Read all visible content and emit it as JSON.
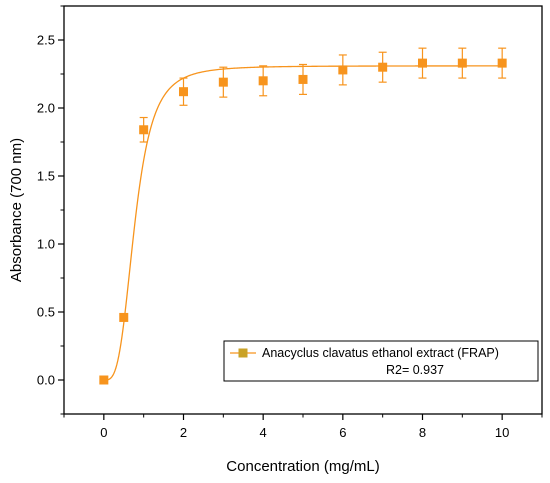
{
  "chart_data": {
    "type": "scatter",
    "xlabel": "Concentration (mg/mL)",
    "ylabel": "Absorbance (700 nm)",
    "xlim": [
      -1.0,
      11.0
    ],
    "ylim": [
      -0.25,
      2.75
    ],
    "xticks": [
      0,
      2,
      4,
      6,
      8,
      10
    ],
    "yticks": [
      0.0,
      0.5,
      1.0,
      1.5,
      2.0,
      2.5
    ],
    "xtick_labels": [
      "0",
      "2",
      "4",
      "6",
      "8",
      "10"
    ],
    "ytick_labels": [
      "0.0",
      "0.5",
      "1.0",
      "1.5",
      "2.0",
      "2.5"
    ],
    "grid": false,
    "legend_position": "bottom-right",
    "colors": {
      "marker": "#F7941D",
      "fit_line": "#F7941D",
      "legend_marker": "#C9A227"
    },
    "series": [
      {
        "name": "Anacyclus clavatus ethanol extract (FRAP)",
        "x": [
          0,
          0.5,
          1,
          2,
          3,
          4,
          5,
          6,
          7,
          8,
          9,
          10
        ],
        "y": [
          0.0,
          0.46,
          1.84,
          2.12,
          2.19,
          2.2,
          2.21,
          2.28,
          2.3,
          2.33,
          2.33,
          2.33
        ],
        "error": [
          0.0,
          0.0,
          0.09,
          0.1,
          0.11,
          0.11,
          0.11,
          0.11,
          0.11,
          0.11,
          0.11,
          0.11
        ]
      }
    ],
    "fit": {
      "type": "sigmoid",
      "r2_label": "R2= 0.937"
    }
  }
}
